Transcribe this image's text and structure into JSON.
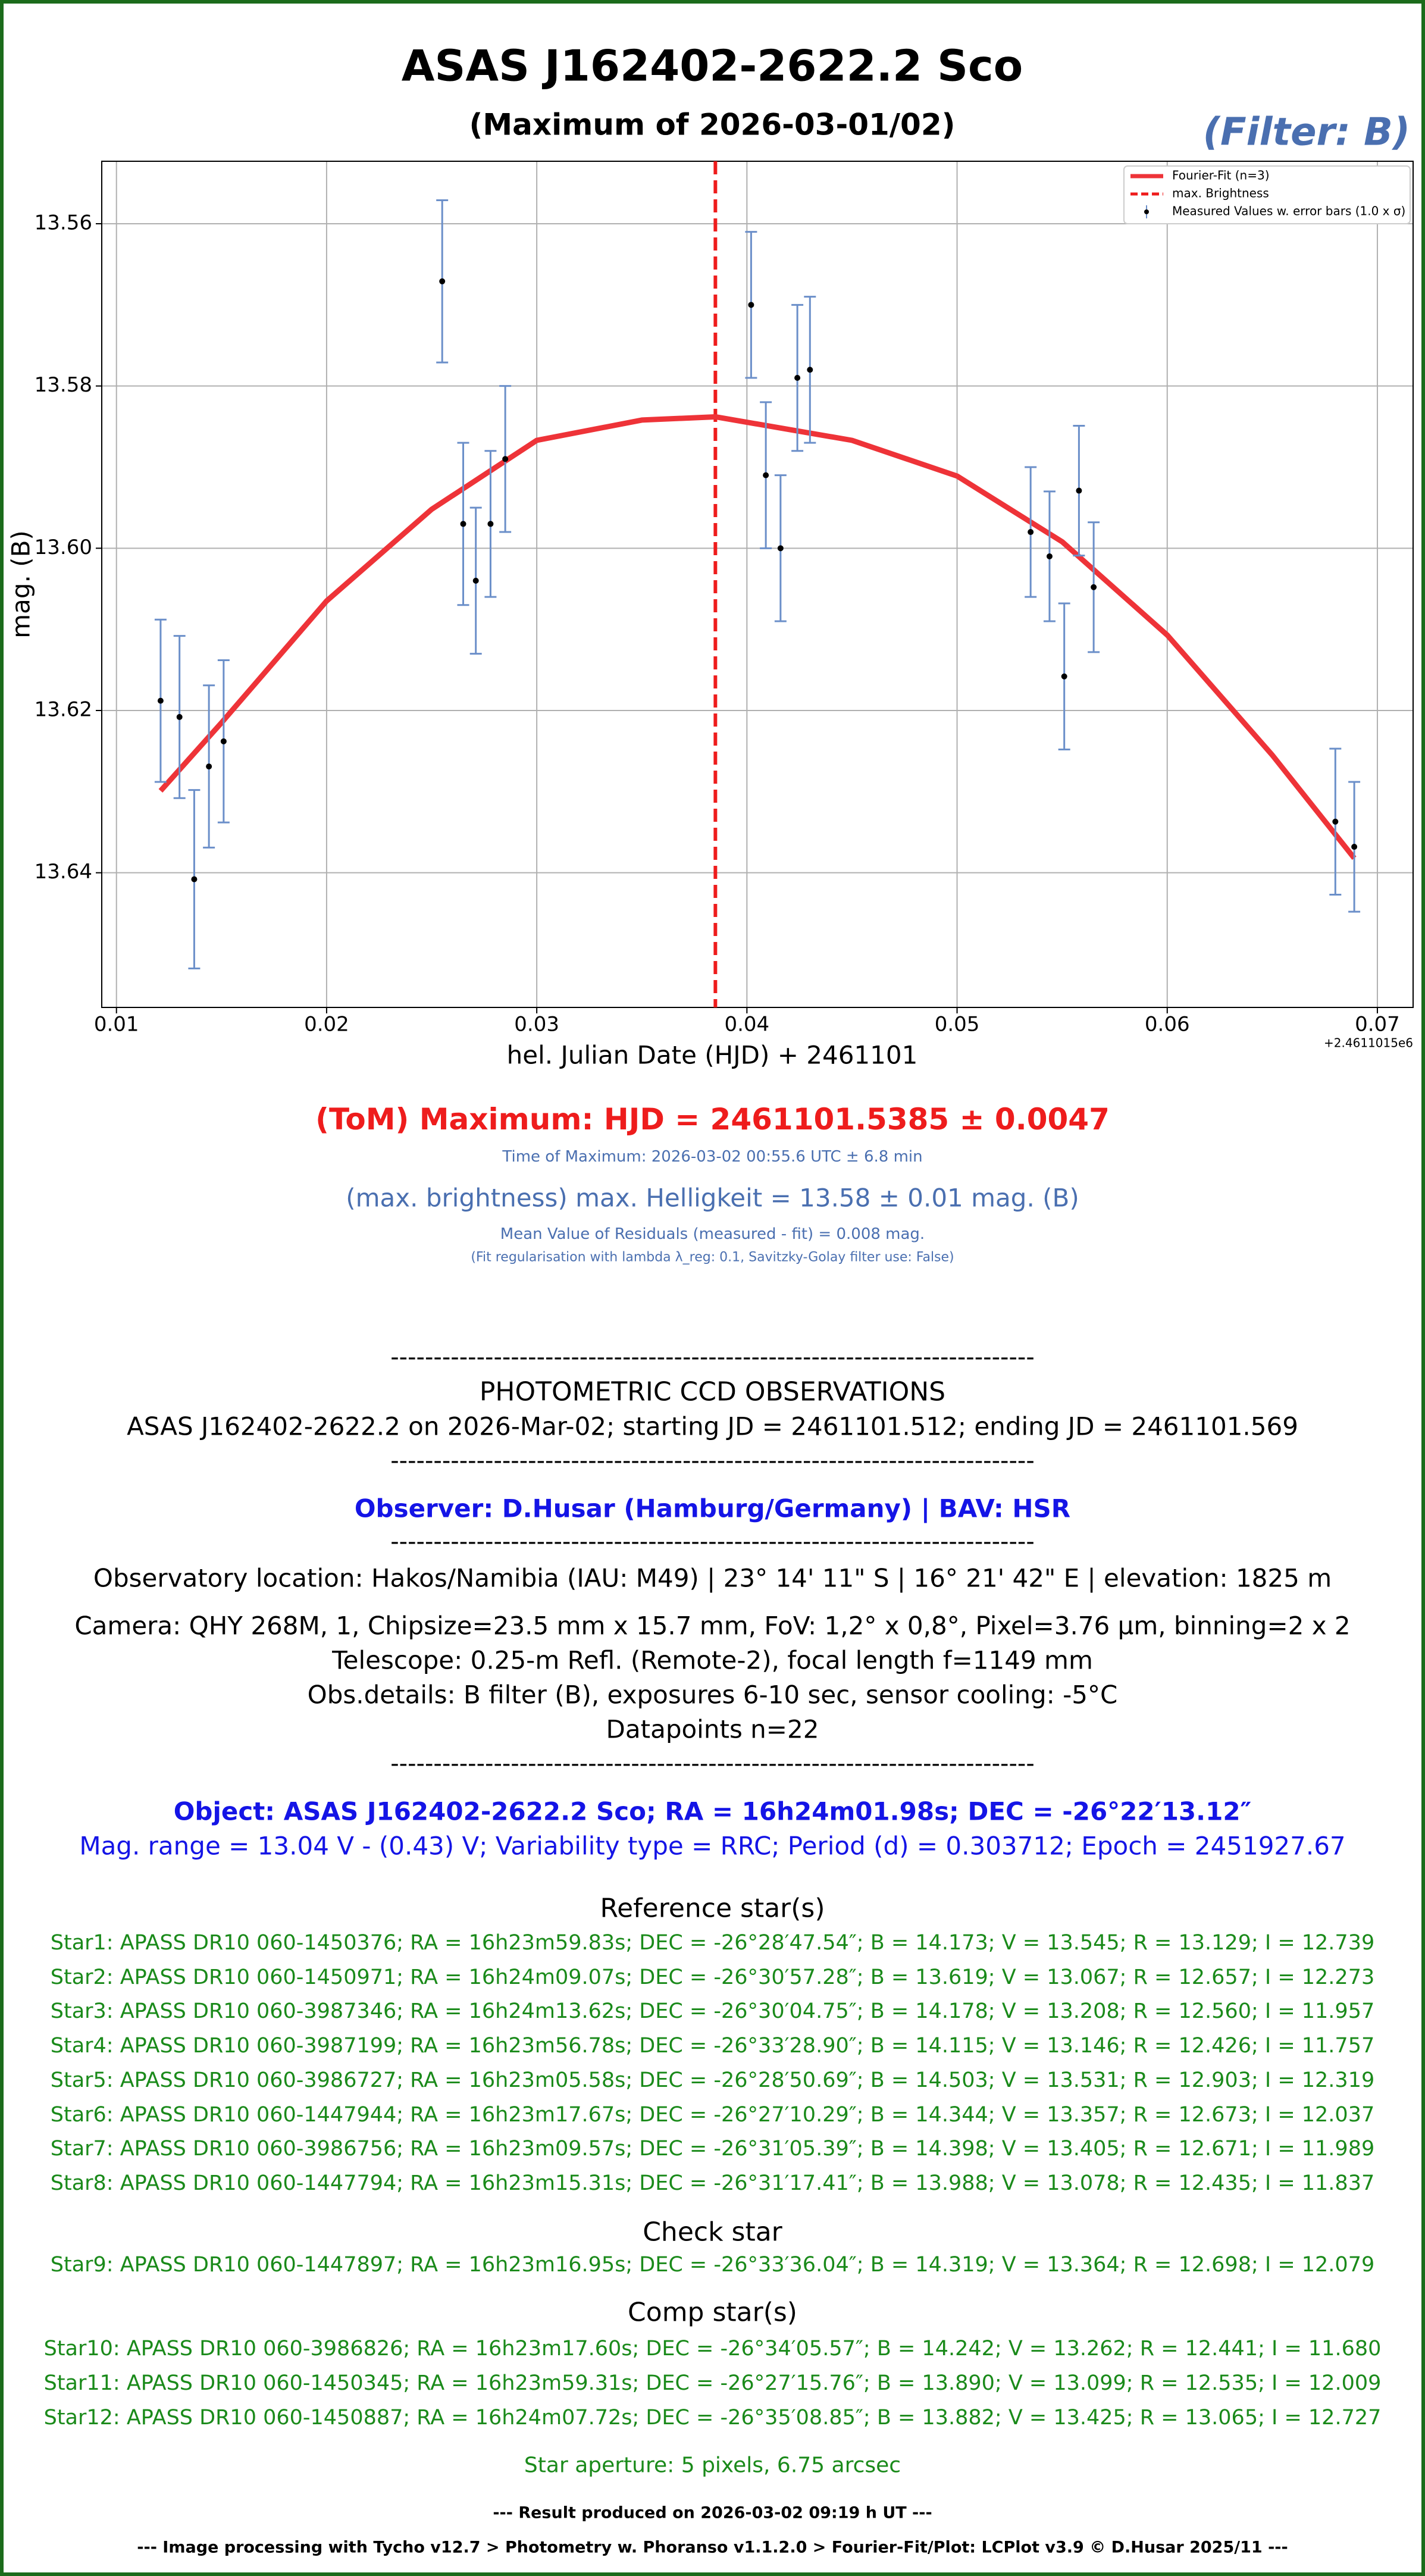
{
  "chart_data": {
    "type": "scatter",
    "title": "ASAS J162402-2622.2 Sco",
    "subtitle": "(Maximum of 2026-03-01/02)",
    "filter_label": "(Filter: B)",
    "x_label": "hel. Julian Date (HJD) + 2461101",
    "y_label": "mag. (B)",
    "x_offset_label": "+2.4611015e6",
    "xlim": [
      0.0093,
      0.0717
    ],
    "xticks": [
      0.01,
      0.02,
      0.03,
      0.04,
      0.05,
      0.06,
      0.07
    ],
    "ylim": [
      13.5523,
      13.6566
    ],
    "y_inverted": true,
    "yticks": [
      13.56,
      13.58,
      {
        "value": 13.6,
        "label": "13.60"
      },
      13.62,
      13.64
    ],
    "grid": true,
    "legend": "upper right",
    "series": [
      {
        "name": "Measured Values w. error bars (1.0 x σ)",
        "color": "#6b8fc9",
        "point_color": "#000000",
        "x": [
          0.0121,
          0.013,
          0.0137,
          0.0144,
          0.0151,
          0.0255,
          0.0265,
          0.0271,
          0.0278,
          0.0285,
          0.0402,
          0.0409,
          0.0416,
          0.0424,
          0.043,
          0.0535,
          0.0544,
          0.0551,
          0.0558,
          0.0565,
          0.068,
          0.0689
        ],
        "values": [
          13.6188,
          13.6208,
          13.6408,
          13.6269,
          13.6238,
          13.5671,
          13.597,
          13.604,
          13.597,
          13.589,
          13.57,
          13.591,
          13.6,
          13.579,
          13.578,
          13.598,
          13.601,
          13.6158,
          13.5929,
          13.6048,
          13.6337,
          13.6368
        ],
        "errors": [
          0.01,
          0.01,
          0.011,
          0.01,
          0.01,
          0.01,
          0.01,
          0.009,
          0.009,
          0.009,
          0.009,
          0.009,
          0.009,
          0.009,
          0.009,
          0.008,
          0.008,
          0.009,
          0.008,
          0.008,
          0.009,
          0.008
        ]
      },
      {
        "name": "Fourier-Fit (n=3)",
        "color": "#ee3338",
        "x": [
          0.0121,
          0.015,
          0.02,
          0.025,
          0.03,
          0.035,
          0.0385,
          0.045,
          0.05,
          0.055,
          0.06,
          0.065,
          0.0689
        ],
        "values": [
          13.6299,
          13.6215,
          13.6065,
          13.5952,
          13.5867,
          13.5842,
          13.5838,
          13.5867,
          13.5911,
          13.5992,
          13.6107,
          13.6255,
          13.6382
        ]
      }
    ],
    "vline": {
      "name": "max. Brightness",
      "x": 0.0385,
      "color": "#ee1c1c"
    }
  },
  "results": {
    "tom": "(ToM) Maximum: HJD = 2461101.5385 ± 0.0047",
    "time_of_max": "Time of Maximum:   2026-03-02   00:55.6 UTC ± 6.8 min",
    "max_brightness": "(max. brightness) max. Helligkeit = 13.58 ± 0.01 mag. (B)",
    "residuals": "Mean Value of Residuals (measured - fit) = 0.008 mag.",
    "regularisation": "(Fit regularisation with lambda λ_reg: 0.1, Savitzky-Golay filter use: False)"
  },
  "report": {
    "separator": "---------------------------------------------------------------------------",
    "heading": "PHOTOMETRIC CCD OBSERVATIONS",
    "run": "ASAS J162402-2622.2 on 2026-Mar-02; starting JD = 2461101.512; ending JD = 2461101.569",
    "observer": "Observer: D.Husar (Hamburg/Germany) | BAV: HSR",
    "observatory": "Observatory location: Hakos/Namibia (IAU: M49) | 23° 14' 11\" S | 16° 21' 42\" E | elevation: 1825 m",
    "camera": "Camera: QHY 268M, 1, Chipsize=23.5 mm x 15.7 mm, FoV: 1,2° x 0,8°, Pixel=3.76 µm, binning=2 x 2",
    "telescope": "Telescope: 0.25-m Refl. (Remote-2), focal length f=1149 mm",
    "obs_details": "Obs.details: B filter (B), exposures 6-10 sec, sensor cooling: -5°C",
    "datapoints": "Datapoints n=22",
    "object": "Object: ASAS J162402-2622.2 Sco; RA = 16h24m01.98s; DEC = -26°22′13.12″",
    "mag_range": "Mag. range = 13.04 V - (0.43) V; Variability type = RRC; Period (d) = 0.303712; Epoch = 2451927.67",
    "reference_heading": "Reference star(s)",
    "reference_stars": [
      "Star1: APASS DR10 060-1450376; RA = 16h23m59.83s; DEC = -26°28′47.54″; B = 14.173; V = 13.545; R = 13.129; I = 12.739",
      "Star2: APASS DR10 060-1450971; RA = 16h24m09.07s; DEC = -26°30′57.28″; B = 13.619; V = 13.067; R = 12.657; I = 12.273",
      "Star3: APASS DR10 060-3987346; RA = 16h24m13.62s; DEC = -26°30′04.75″; B = 14.178; V = 13.208; R = 12.560; I = 11.957",
      "Star4: APASS DR10 060-3987199; RA = 16h23m56.78s; DEC = -26°33′28.90″; B = 14.115; V = 13.146; R = 12.426; I = 11.757",
      "Star5: APASS DR10 060-3986727; RA = 16h23m05.58s; DEC = -26°28′50.69″; B = 14.503; V = 13.531; R = 12.903; I = 12.319",
      "Star6: APASS DR10 060-1447944; RA = 16h23m17.67s; DEC = -26°27′10.29″; B = 14.344; V = 13.357; R = 12.673; I = 12.037",
      "Star7: APASS DR10 060-3986756; RA = 16h23m09.57s; DEC = -26°31′05.39″; B = 14.398; V = 13.405; R = 12.671; I = 11.989",
      "Star8: APASS DR10 060-1447794; RA = 16h23m15.31s; DEC = -26°31′17.41″; B = 13.988; V = 13.078; R = 12.435; I = 11.837"
    ],
    "check_heading": "Check star",
    "check_stars": [
      "Star9: APASS DR10 060-1447897; RA = 16h23m16.95s; DEC = -26°33′36.04″; B = 14.319; V = 13.364; R = 12.698; I = 12.079"
    ],
    "comp_heading": "Comp star(s)",
    "comp_stars": [
      "Star10: APASS DR10 060-3986826; RA = 16h23m17.60s; DEC = -26°34′05.57″; B = 14.242; V = 13.262; R = 12.441; I = 11.680",
      "Star11: APASS DR10 060-1450345; RA = 16h23m59.31s; DEC = -26°27′15.76″; B = 13.890; V = 13.099; R = 12.535; I = 12.009",
      "Star12: APASS DR10 060-1450887; RA = 16h24m07.72s; DEC = -26°35′08.85″; B = 13.882; V = 13.425; R = 13.065; I = 12.727"
    ],
    "aperture": "Star aperture: 5 pixels, 6.75 arcsec",
    "produced": "--- Result produced on 2026-03-02 09:19 h UT ---",
    "processing": "--- Image processing with Tycho v12.7 > Photometry w. Phoranso v1.1.2.0 > Fourier-Fit/Plot: LCPlot v3.9 © D.Husar 2025/11 ---"
  }
}
